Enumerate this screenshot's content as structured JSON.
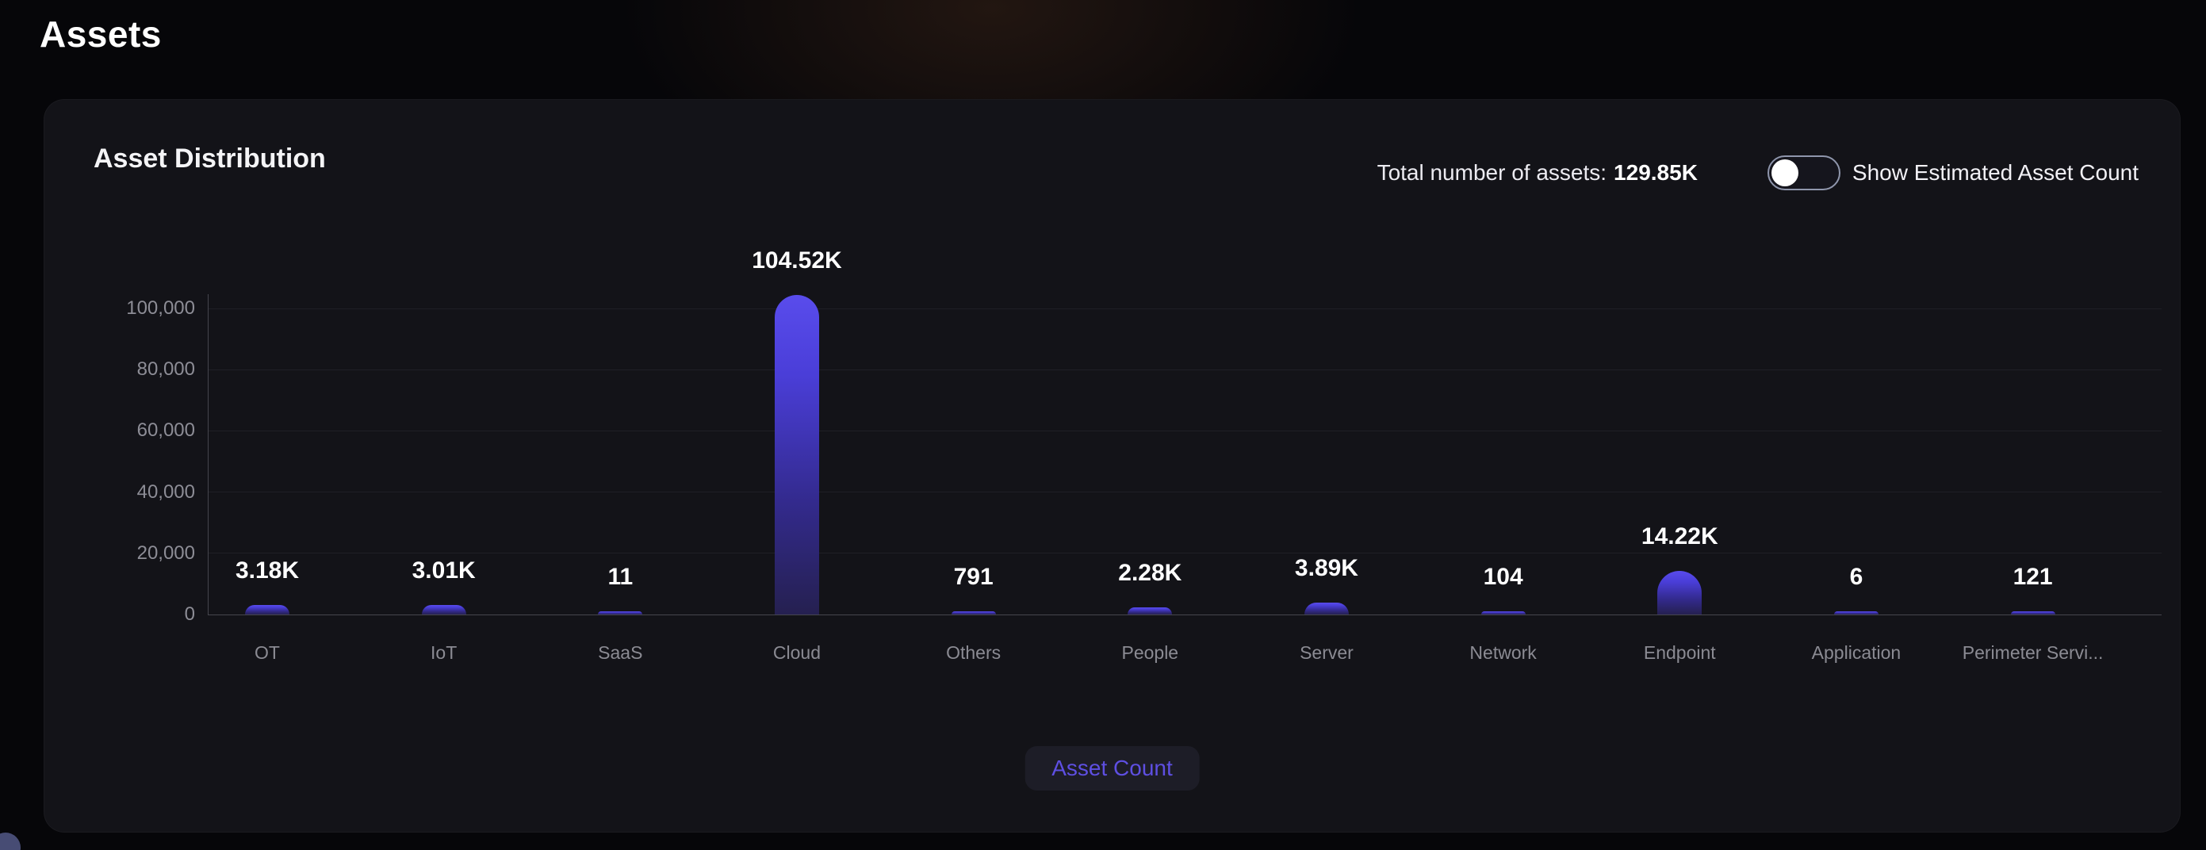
{
  "page": {
    "title": "Assets"
  },
  "card": {
    "title": "Asset Distribution"
  },
  "header": {
    "total_label": "Total number of assets:",
    "total_value": "129.85K",
    "toggle_label": "Show Estimated Asset Count",
    "toggle_state": "off"
  },
  "legend": {
    "label": "Asset Count"
  },
  "colors": {
    "accent_purple": "#5e4fe2",
    "bar_gradient_top": "#594cec",
    "bar_gradient_bottom": "#252050",
    "card_background": "#131318",
    "page_background": "#060609",
    "gridline": "#1f1f26",
    "axis_line": "#46464e",
    "tick_text": "#8d8d96",
    "value_text": "#ffffff"
  },
  "chart_data": {
    "type": "bar",
    "title": "Asset Distribution",
    "categories": [
      "OT",
      "IoT",
      "SaaS",
      "Cloud",
      "Others",
      "People",
      "Server",
      "Network",
      "Endpoint",
      "Application",
      "Perimeter Servi..."
    ],
    "values": [
      3180,
      3010,
      11,
      104520,
      791,
      2280,
      3890,
      104,
      14220,
      6,
      121
    ],
    "value_labels": [
      "3.18K",
      "3.01K",
      "11",
      "104.52K",
      "791",
      "2.28K",
      "3.89K",
      "104",
      "14.22K",
      "6",
      "121"
    ],
    "series_name": "Asset Count",
    "xlabel": "",
    "ylabel": "",
    "yticks": [
      0,
      20000,
      40000,
      60000,
      80000,
      100000
    ],
    "ytick_labels": [
      "0",
      "20,000",
      "40,000",
      "60,000",
      "80,000",
      "100,000"
    ],
    "ylim": [
      0,
      104700
    ],
    "grid": true,
    "legend": [
      "Asset Count"
    ],
    "legend_position": "bottom"
  }
}
